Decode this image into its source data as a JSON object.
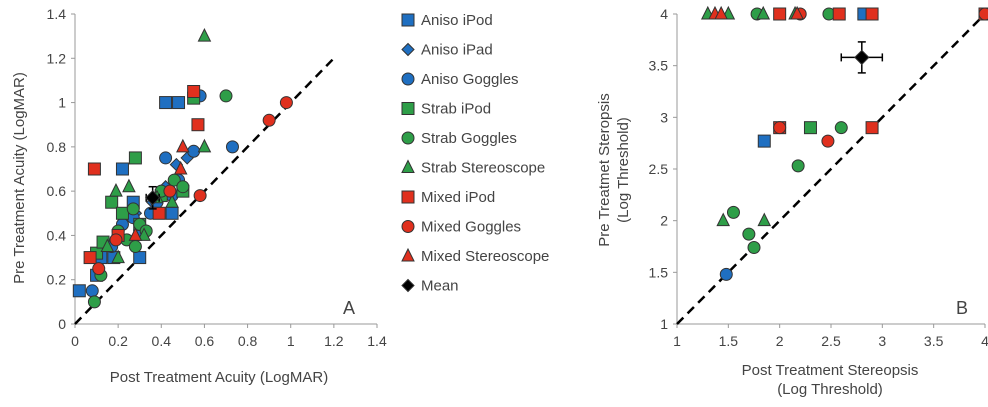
{
  "colors": {
    "Aniso": "#1f6fc1",
    "Strab": "#2e9e48",
    "Mixed": "#e0301e",
    "Mean": "#000000",
    "outline": "#333333",
    "diagonal": "#000000"
  },
  "legend": [
    {
      "label": "Aniso iPod",
      "group": "Aniso",
      "marker": "square"
    },
    {
      "label": "Aniso iPad",
      "group": "Aniso",
      "marker": "diamond"
    },
    {
      "label": "Aniso Goggles",
      "group": "Aniso",
      "marker": "circle"
    },
    {
      "label": "Strab iPod",
      "group": "Strab",
      "marker": "square"
    },
    {
      "label": "Strab Goggles",
      "group": "Strab",
      "marker": "circle"
    },
    {
      "label": "Strab Stereoscope",
      "group": "Strab",
      "marker": "triangle"
    },
    {
      "label": "Mixed iPod",
      "group": "Mixed",
      "marker": "square"
    },
    {
      "label": "Mixed Goggles",
      "group": "Mixed",
      "marker": "circle"
    },
    {
      "label": "Mixed Stereoscope",
      "group": "Mixed",
      "marker": "triangle"
    },
    {
      "label": "Mean",
      "group": "Mean",
      "marker": "diamond"
    }
  ],
  "chart_data": [
    {
      "type": "scatter",
      "panel_label": "A",
      "xlabel": "Post Treatment Acuity (LogMAR)",
      "ylabel": "Pre Treatment Acuity (LogMAR)",
      "xlim": [
        0,
        1.4
      ],
      "ylim": [
        0,
        1.4
      ],
      "xticks": [
        0,
        0.2,
        0.4,
        0.6,
        0.8,
        1,
        1.2,
        1.4
      ],
      "yticks": [
        0,
        0.2,
        0.4,
        0.6,
        0.8,
        1,
        1.2,
        1.4
      ],
      "xtick_labels": [
        "0",
        "0.2",
        "0.4",
        "0.6",
        "0.8",
        "1",
        "1.2",
        "1.4"
      ],
      "ytick_labels": [
        "0",
        "0.2",
        "0.4",
        "0.6",
        "0.8",
        "1",
        "1.2",
        "1.4"
      ],
      "reference_line": {
        "x": [
          0,
          1.2
        ],
        "y": [
          0,
          1.2
        ],
        "style": "dashed"
      },
      "series": [
        {
          "name": "Aniso iPod",
          "group": "Aniso",
          "marker": "square",
          "x": [
            0.02,
            0.1,
            0.18,
            0.22,
            0.27,
            0.42,
            0.48,
            0.3,
            0.12,
            0.45
          ],
          "y": [
            0.15,
            0.22,
            0.3,
            0.7,
            0.55,
            1.0,
            1.0,
            0.3,
            0.3,
            0.5
          ]
        },
        {
          "name": "Aniso iPad",
          "group": "Aniso",
          "marker": "diamond",
          "x": [
            0.28,
            0.36,
            0.47,
            0.52,
            0.42,
            0.3
          ],
          "y": [
            0.5,
            0.55,
            0.72,
            0.75,
            0.62,
            0.45
          ]
        },
        {
          "name": "Aniso Goggles",
          "group": "Aniso",
          "marker": "circle",
          "x": [
            0.08,
            0.17,
            0.22,
            0.3,
            0.35,
            0.42,
            0.48,
            0.55,
            0.58,
            0.73,
            0.38,
            0.45,
            0.27,
            0.2
          ],
          "y": [
            0.15,
            0.35,
            0.45,
            0.42,
            0.5,
            0.75,
            0.65,
            0.78,
            1.03,
            0.8,
            0.55,
            0.58,
            0.48,
            0.4
          ]
        },
        {
          "name": "Strab iPod",
          "group": "Strab",
          "marker": "square",
          "x": [
            0.1,
            0.13,
            0.17,
            0.22,
            0.28,
            0.3,
            0.4,
            0.5,
            0.55
          ],
          "y": [
            0.32,
            0.37,
            0.55,
            0.5,
            0.75,
            0.45,
            0.58,
            0.6,
            1.02
          ]
        },
        {
          "name": "Strab Goggles",
          "group": "Strab",
          "marker": "circle",
          "x": [
            0.09,
            0.12,
            0.2,
            0.24,
            0.27,
            0.3,
            0.33,
            0.4,
            0.46,
            0.5,
            0.7,
            0.28
          ],
          "y": [
            0.1,
            0.22,
            0.42,
            0.38,
            0.52,
            0.45,
            0.42,
            0.6,
            0.65,
            0.62,
            1.03,
            0.35
          ]
        },
        {
          "name": "Strab Stereoscope",
          "group": "Strab",
          "marker": "triangle",
          "x": [
            0.15,
            0.19,
            0.25,
            0.32,
            0.38,
            0.45,
            0.6,
            0.2,
            0.6
          ],
          "y": [
            0.35,
            0.6,
            0.62,
            0.4,
            0.57,
            0.55,
            1.3,
            0.3,
            0.8
          ]
        },
        {
          "name": "Mixed iPod",
          "group": "Mixed",
          "marker": "square",
          "x": [
            0.07,
            0.09,
            0.2,
            0.39,
            0.55,
            0.57
          ],
          "y": [
            0.3,
            0.7,
            0.4,
            0.5,
            1.05,
            0.9
          ]
        },
        {
          "name": "Mixed Goggles",
          "group": "Mixed",
          "marker": "circle",
          "x": [
            0.11,
            0.19,
            0.44,
            0.58,
            0.9,
            0.98
          ],
          "y": [
            0.25,
            0.38,
            0.6,
            0.58,
            0.92,
            1.0
          ]
        },
        {
          "name": "Mixed Stereoscope",
          "group": "Mixed",
          "marker": "triangle",
          "x": [
            0.28,
            0.49,
            0.5
          ],
          "y": [
            0.4,
            0.7,
            0.8
          ]
        },
        {
          "name": "Mean",
          "group": "Mean",
          "marker": "diamond",
          "x": [
            0.36
          ],
          "y": [
            0.57
          ],
          "xerr": [
            0.03
          ],
          "yerr": [
            0.05
          ]
        }
      ]
    },
    {
      "type": "scatter",
      "panel_label": "B",
      "xlabel": [
        "Post Treatment Stereopsis",
        "(Log Threshold)"
      ],
      "ylabel": [
        "Pre Treatmet Steropsis",
        "(Log Threshold)"
      ],
      "xlim": [
        1,
        4
      ],
      "ylim": [
        1,
        4
      ],
      "xticks": [
        1,
        1.5,
        2,
        2.5,
        3,
        3.5,
        4
      ],
      "yticks": [
        1,
        1.5,
        2,
        2.5,
        3,
        3.5,
        4
      ],
      "xtick_labels": [
        "1",
        "1.5",
        "2",
        "2.5",
        "3",
        "3.5",
        "4"
      ],
      "ytick_labels": [
        "1",
        "1.5",
        "2",
        "2.5",
        "3",
        "3.5",
        "4"
      ],
      "reference_line": {
        "x": [
          1,
          4
        ],
        "y": [
          1,
          4
        ],
        "style": "dashed"
      },
      "series": [
        {
          "name": "Aniso iPod",
          "group": "Aniso",
          "marker": "square",
          "x": [
            1.85,
            2.82
          ],
          "y": [
            2.77,
            4.0
          ]
        },
        {
          "name": "Aniso Goggles",
          "group": "Aniso",
          "marker": "circle",
          "x": [
            1.48
          ],
          "y": [
            1.48
          ]
        },
        {
          "name": "Strab iPod",
          "group": "Strab",
          "marker": "square",
          "x": [
            2.3
          ],
          "y": [
            2.9
          ]
        },
        {
          "name": "Strab Goggles",
          "group": "Strab",
          "marker": "circle",
          "x": [
            1.55,
            1.7,
            1.75,
            2.18,
            2.6,
            1.78,
            2.48
          ],
          "y": [
            2.08,
            1.87,
            1.74,
            2.53,
            2.9,
            4.0,
            4.0
          ]
        },
        {
          "name": "Strab Stereoscope",
          "group": "Strab",
          "marker": "triangle",
          "x": [
            1.45,
            1.85,
            1.3,
            1.5,
            1.84,
            2.15
          ],
          "y": [
            2.0,
            2.0,
            4.0,
            4.0,
            4.0,
            4.0
          ]
        },
        {
          "name": "Mixed iPod",
          "group": "Mixed",
          "marker": "square",
          "x": [
            2.0,
            2.9,
            2.0,
            2.58,
            2.9,
            4.0
          ],
          "y": [
            2.9,
            2.9,
            4.0,
            4.0,
            4.0,
            4.0
          ]
        },
        {
          "name": "Mixed Goggles",
          "group": "Mixed",
          "marker": "circle",
          "x": [
            2.0,
            2.47,
            2.2,
            4.0
          ],
          "y": [
            2.9,
            2.77,
            4.0,
            4.0
          ]
        },
        {
          "name": "Mixed Stereoscope",
          "group": "Mixed",
          "marker": "triangle",
          "x": [
            1.37,
            1.43,
            2.17
          ],
          "y": [
            4.0,
            4.0,
            4.0
          ]
        },
        {
          "name": "Mean",
          "group": "Mean",
          "marker": "diamond",
          "x": [
            2.8
          ],
          "y": [
            3.58
          ],
          "xerr": [
            0.2
          ],
          "yerr": [
            0.15
          ]
        }
      ]
    }
  ]
}
